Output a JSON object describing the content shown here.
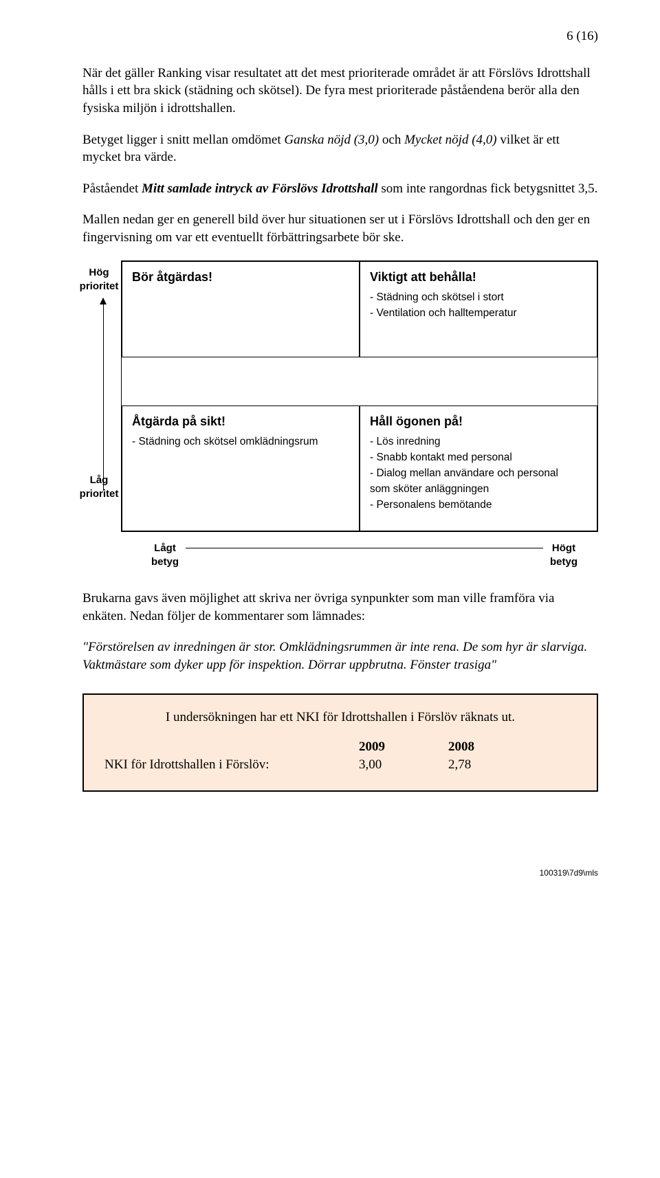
{
  "page_number": "6 (16)",
  "para1": "När det gäller Ranking visar resultatet att det mest prioriterade området är att Förslövs Idrottshall hålls i ett bra skick (städning och skötsel). De fyra mest prioriterade påståendena berör alla den fysiska miljön i idrottshallen.",
  "para2_a": "Betyget ligger i snitt mellan omdömet ",
  "para2_b": "Ganska nöjd (3,0)",
  "para2_c": " och ",
  "para2_d": "Mycket nöjd (4,0)",
  "para2_e": " vilket är ett mycket bra värde.",
  "para3_a": "Påståendet ",
  "para3_b": "Mitt samlade intryck av Förslövs Idrottshall",
  "para3_c": " som inte rangordnas fick betygsnittet 3,5.",
  "para4": "Mallen nedan ger en generell bild över hur situationen ser ut i Förslövs Idrottshall och den ger en fingervisning om var ett eventuellt förbättringsarbete bör ske.",
  "axis": {
    "y_high_1": "Hög",
    "y_high_2": "prioritet",
    "y_low_1": "Låg",
    "y_low_2": "prioritet",
    "x_low_1": "Lågt",
    "x_low_2": "betyg",
    "x_high_1": "Högt",
    "x_high_2": "betyg"
  },
  "matrix": {
    "q1": {
      "title": "Bör åtgärdas!",
      "items": []
    },
    "q2": {
      "title": "Viktigt att behålla!",
      "items": [
        "- Städning och skötsel i stort",
        "- Ventilation och halltemperatur"
      ]
    },
    "q3": {
      "title": "Åtgärda på sikt!",
      "items": [
        "- Städning och skötsel omklädningsrum"
      ]
    },
    "q4": {
      "title": "Håll ögonen på!",
      "items": [
        "- Lös inredning",
        "- Snabb kontakt med personal",
        "- Dialog mellan användare och personal",
        "  som sköter anläggningen",
        "- Personalens bemötande"
      ]
    }
  },
  "para5": "Brukarna gavs även möjlighet att skriva ner övriga synpunkter som man ville framföra via enkäten. Nedan följer de kommentarer som lämnades:",
  "quote": "\"Förstörelsen av inredningen är stor. Omklädningsrummen är inte rena. De som hyr är slarviga. Vaktmästare som dyker upp för inspektion. Dörrar uppbrutna. Fönster trasiga\"",
  "nki": {
    "title": "I undersökningen har ett NKI för Idrottshallen i Förslöv räknats ut.",
    "label": "NKI för Idrottshallen i Förslöv:",
    "year1": "2009",
    "year2": "2008",
    "val1": "3,00",
    "val2": "2,78"
  },
  "footer": "100319\\7d9\\mls",
  "colors": {
    "nki_bg": "#fdeada"
  }
}
